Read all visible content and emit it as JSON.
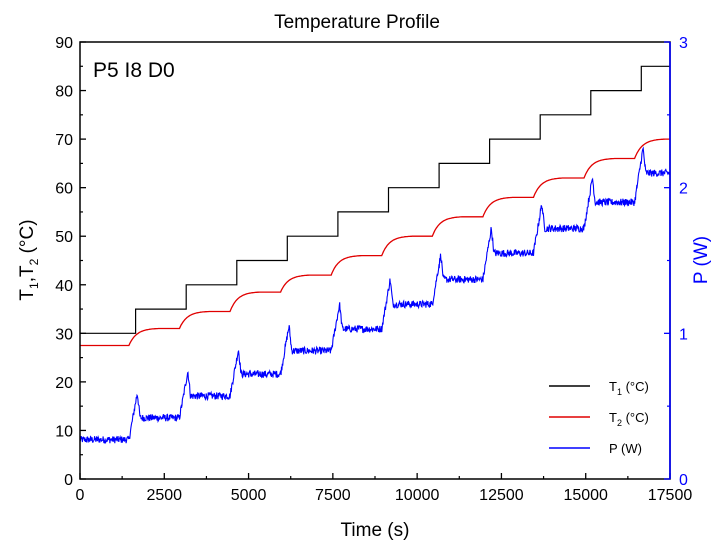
{
  "chart_data": {
    "type": "line",
    "title": "Temperature Profile",
    "annotation": "P5 I8 D0",
    "xlabel": "Time (s)",
    "ylabel_left": {
      "main": "T",
      "s1": "1",
      "sep": ",T",
      "s2": "2",
      "tail": " (°C)"
    },
    "ylabel_right": "P (W)",
    "xlim": [
      0,
      17500
    ],
    "ylim_left": [
      0,
      90
    ],
    "ylim_right": [
      0,
      3
    ],
    "xticks": [
      "0",
      "2500",
      "5000",
      "7500",
      "10000",
      "12500",
      "15000",
      "17500"
    ],
    "yticks_left": [
      "0",
      "10",
      "20",
      "30",
      "40",
      "50",
      "60",
      "70",
      "80",
      "90"
    ],
    "yticks_right": [
      "0",
      "1",
      "2",
      "3"
    ],
    "grid": false,
    "legend_position": "bottom-right",
    "colors": {
      "T1": "#000000",
      "T2": "#e00000",
      "P": "#0000ff",
      "right_axis": "#0000ff"
    },
    "legend": [
      {
        "key": "T1",
        "main": "T",
        "sub": "1",
        "tail": " (°C)"
      },
      {
        "key": "T2",
        "main": "T",
        "sub": "2",
        "tail": " (°C)"
      },
      {
        "key": "P",
        "main": "P  (W)",
        "sub": "",
        "tail": ""
      }
    ],
    "series": {
      "T1": {
        "axis": "left",
        "steps": [
          [
            0,
            1450,
            30
          ],
          [
            1450,
            1650,
            30
          ],
          [
            1650,
            2950,
            35
          ],
          [
            2950,
            3150,
            35
          ],
          [
            3150,
            4450,
            40
          ],
          [
            4450,
            4650,
            40
          ],
          [
            4650,
            5950,
            45
          ],
          [
            5950,
            6150,
            45
          ],
          [
            6150,
            7450,
            50
          ],
          [
            7450,
            7650,
            50
          ],
          [
            7650,
            8950,
            55
          ],
          [
            8950,
            9150,
            55
          ],
          [
            9150,
            10450,
            60
          ],
          [
            10450,
            10650,
            60
          ],
          [
            10650,
            11950,
            65
          ],
          [
            11950,
            12150,
            65
          ],
          [
            12150,
            13450,
            70
          ],
          [
            13450,
            13650,
            70
          ],
          [
            13650,
            14950,
            75
          ],
          [
            14950,
            15150,
            75
          ],
          [
            15150,
            16450,
            80
          ],
          [
            16450,
            16650,
            80
          ],
          [
            16650,
            17500,
            85
          ]
        ]
      },
      "T2": {
        "axis": "left",
        "levels": [
          27.5,
          31,
          34.5,
          38.5,
          42,
          46,
          50,
          54,
          58,
          62,
          66,
          70
        ],
        "change_times": [
          1450,
          2950,
          4450,
          5950,
          7450,
          8950,
          10450,
          11950,
          13450,
          14950,
          16450
        ],
        "rise_duration_s": 900
      },
      "P": {
        "axis": "right",
        "levels": [
          0.27,
          0.42,
          0.57,
          0.72,
          0.88,
          1.03,
          1.2,
          1.37,
          1.55,
          1.72,
          1.9,
          2.1
        ],
        "change_times": [
          1450,
          2950,
          4450,
          5950,
          7450,
          8950,
          10450,
          11950,
          13450,
          14950,
          16450
        ],
        "peak_offset": 0.17,
        "peak_time_s": 250,
        "noise": 0.025
      }
    }
  }
}
